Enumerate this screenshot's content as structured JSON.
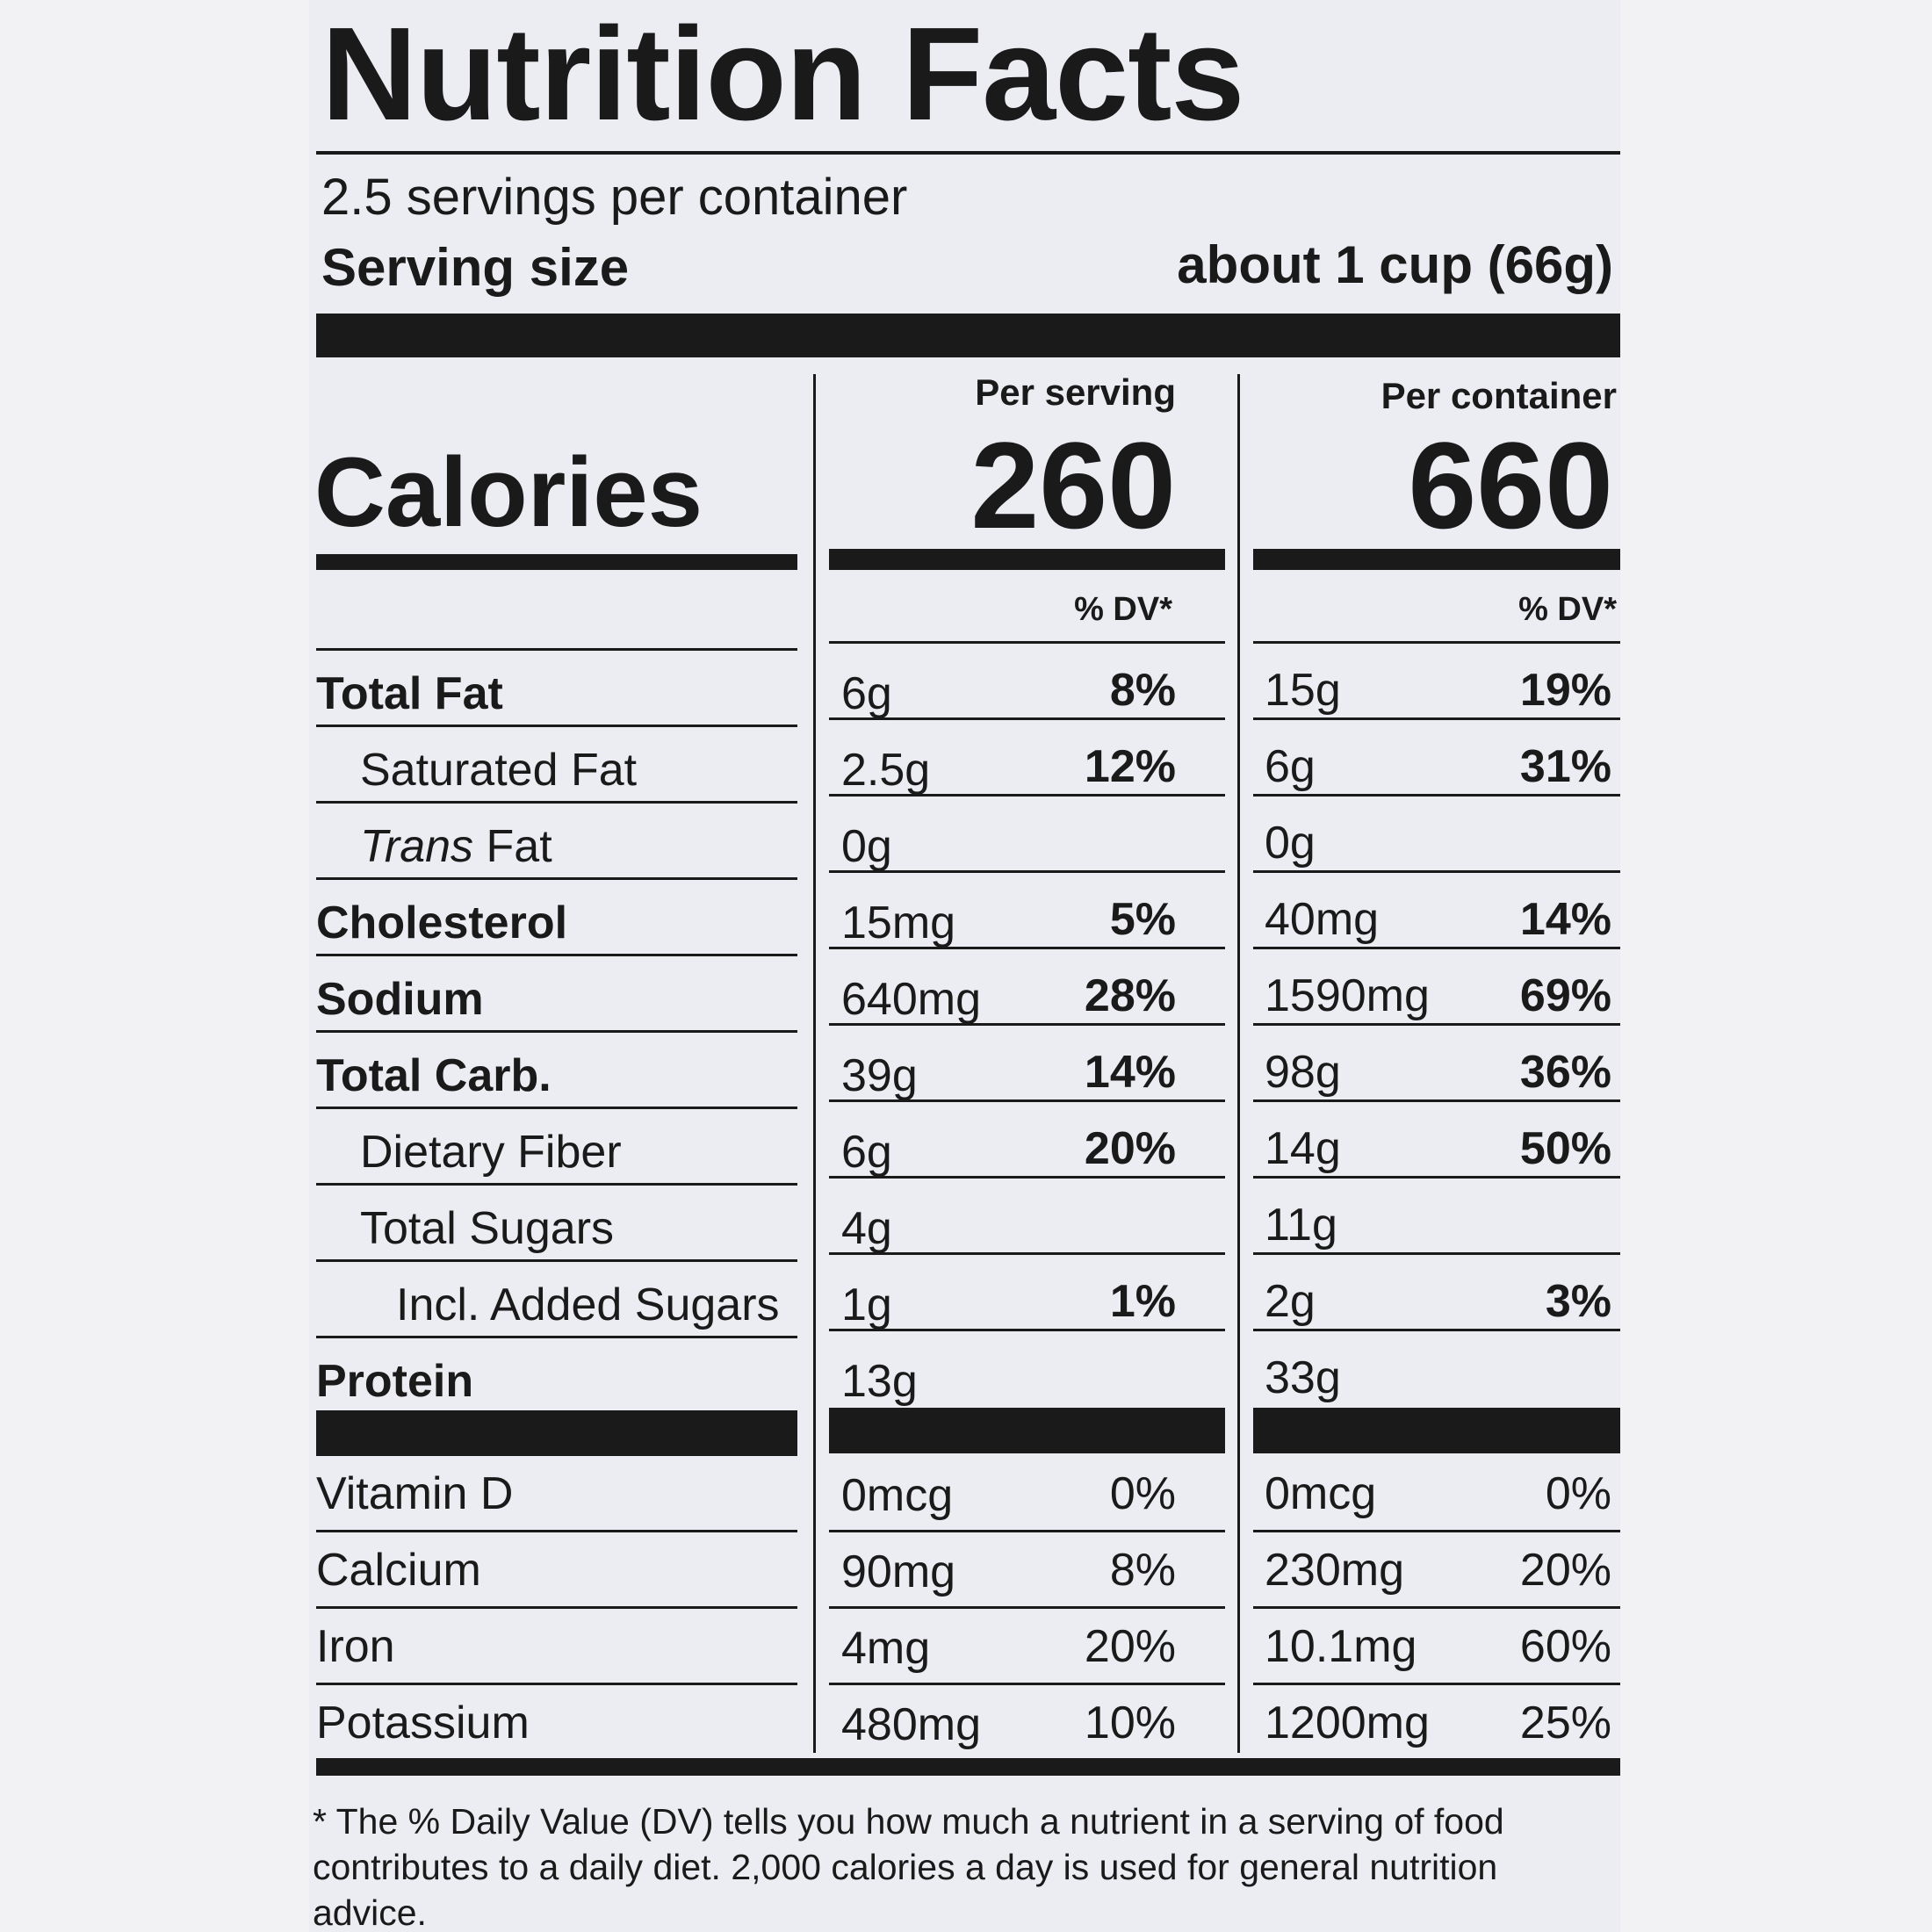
{
  "title": "Nutrition Facts",
  "servings_per_container": "2.5 servings per container",
  "serving_size_label": "Serving size",
  "serving_size_value": "about 1 cup (66g)",
  "calories_label": "Calories",
  "per_serving_label": "Per serving",
  "per_container_label": "Per container",
  "calories_per_serving": "260",
  "calories_per_container": "660",
  "dv_header": "% DV*",
  "nutrients": [
    {
      "name": "Total Fat",
      "ps_amount": "6g",
      "ps_dv": "8%",
      "pc_amount": "15g",
      "pc_dv": "19%"
    },
    {
      "name": "Saturated Fat",
      "ps_amount": "2.5g",
      "ps_dv": "12%",
      "pc_amount": "6g",
      "pc_dv": "31%"
    },
    {
      "name_italic": "Trans",
      "name": "Fat",
      "ps_amount": "0g",
      "ps_dv": "",
      "pc_amount": "0g",
      "pc_dv": ""
    },
    {
      "name": "Cholesterol",
      "ps_amount": "15mg",
      "ps_dv": "5%",
      "pc_amount": "40mg",
      "pc_dv": "14%"
    },
    {
      "name": "Sodium",
      "ps_amount": "640mg",
      "ps_dv": "28%",
      "pc_amount": "1590mg",
      "pc_dv": "69%"
    },
    {
      "name": "Total Carb.",
      "ps_amount": "39g",
      "ps_dv": "14%",
      "pc_amount": "98g",
      "pc_dv": "36%"
    },
    {
      "name": "Dietary Fiber",
      "ps_amount": "6g",
      "ps_dv": "20%",
      "pc_amount": "14g",
      "pc_dv": "50%"
    },
    {
      "name": "Total Sugars",
      "ps_amount": "4g",
      "ps_dv": "",
      "pc_amount": "11g",
      "pc_dv": ""
    },
    {
      "name": "Incl. Added Sugars",
      "ps_amount": "1g",
      "ps_dv": "1%",
      "pc_amount": "2g",
      "pc_dv": "3%"
    },
    {
      "name": "Protein",
      "ps_amount": "13g",
      "ps_dv": "",
      "pc_amount": "33g",
      "pc_dv": ""
    }
  ],
  "vitamins": [
    {
      "name": "Vitamin D",
      "ps_amount": "0mcg",
      "ps_dv": "0%",
      "pc_amount": "0mcg",
      "pc_dv": "0%"
    },
    {
      "name": "Calcium",
      "ps_amount": "90mg",
      "ps_dv": "8%",
      "pc_amount": "230mg",
      "pc_dv": "20%"
    },
    {
      "name": "Iron",
      "ps_amount": "4mg",
      "ps_dv": "20%",
      "pc_amount": "10.1mg",
      "pc_dv": "60%"
    },
    {
      "name": "Potassium",
      "ps_amount": "480mg",
      "ps_dv": "10%",
      "pc_amount": "1200mg",
      "pc_dv": "25%"
    }
  ],
  "footnote": "* The % Daily Value (DV) tells you how much a nutrient in a serving of food contributes to a daily diet. 2,000 calories a day is used for general nutrition advice."
}
